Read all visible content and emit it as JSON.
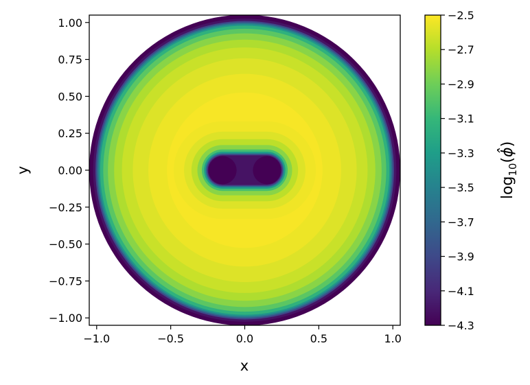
{
  "chart_data": {
    "type": "heatmap",
    "subtype": "filled-contour",
    "title": "",
    "xlabel": "x",
    "ylabel": "y",
    "xlim": [
      -1.05,
      1.05
    ],
    "ylim": [
      -1.05,
      1.05
    ],
    "x_ticks": [
      -1.0,
      -0.5,
      0.0,
      0.5,
      1.0
    ],
    "x_tick_labels": [
      "−1.0",
      "−0.5",
      "0.0",
      "0.5",
      "1.0"
    ],
    "y_ticks": [
      1.0,
      0.75,
      0.5,
      0.25,
      0.0,
      -0.25,
      -0.5,
      -0.75,
      -1.0
    ],
    "y_tick_labels": [
      "1.00",
      "0.75",
      "0.50",
      "0.25",
      "0.00",
      "−0.25",
      "−0.50",
      "−0.75",
      "−1.00"
    ],
    "grid": false,
    "colormap": "viridis",
    "domain": {
      "shape": "disk",
      "center": [
        0,
        0
      ],
      "radius": 1.05
    },
    "holes": [
      {
        "center": [
          -0.15,
          0.0
        ],
        "radius": 0.095
      },
      {
        "center": [
          0.15,
          0.0
        ],
        "radius": 0.095
      }
    ],
    "levels_region": [
      {
        "label": "outer rim",
        "log10_phi": -4.3
      },
      {
        "label": "interior plateau",
        "log10_phi": -2.5
      },
      {
        "label": "around holes",
        "log10_phi": -4.3
      }
    ],
    "colorbar": {
      "label": "log10(ϕ̂)",
      "range": [
        -4.3,
        -2.5
      ],
      "ticks": [
        -2.5,
        -2.7,
        -2.9,
        -3.1,
        -3.3,
        -3.5,
        -3.7,
        -3.9,
        -4.1,
        -4.3
      ],
      "tick_labels": [
        "−2.5",
        "−2.7",
        "−2.9",
        "−3.1",
        "−3.3",
        "−3.5",
        "−3.7",
        "−3.9",
        "−4.1",
        "−4.3"
      ],
      "colors": [
        "#440154",
        "#482878",
        "#3e4989",
        "#31688e",
        "#26828e",
        "#1f9e89",
        "#35b779",
        "#6ece58",
        "#b5de2b",
        "#fde725"
      ]
    }
  }
}
